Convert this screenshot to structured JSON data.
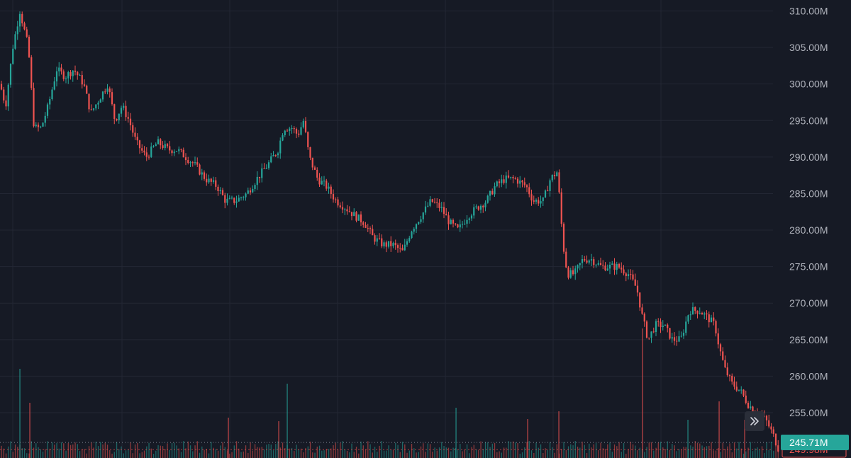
{
  "colors": {
    "background": "#161a25",
    "grid": "#232734",
    "up": "#26a69a",
    "down": "#ef5350",
    "axis_text": "#b2b5be"
  },
  "chart_data": {
    "type": "candlestick",
    "title": "",
    "xlabel": "",
    "ylabel": "",
    "ylim": [
      248.8,
      311.5
    ],
    "y_axis_position": "right",
    "y_ticks": [
      "310.00M",
      "305.00M",
      "300.00M",
      "295.00M",
      "290.00M",
      "285.00M",
      "280.00M",
      "275.00M",
      "270.00M",
      "265.00M",
      "260.00M",
      "255.00M"
    ],
    "y_tick_values": [
      310,
      305,
      300,
      295,
      290,
      285,
      280,
      275,
      270,
      265,
      260,
      255
    ],
    "grid": true,
    "x_tick_labels": [],
    "price_path": [
      [
        0,
        300
      ],
      [
        8,
        297
      ],
      [
        18,
        305
      ],
      [
        28,
        310
      ],
      [
        40,
        305
      ],
      [
        48,
        294
      ],
      [
        58,
        294
      ],
      [
        68,
        297
      ],
      [
        80,
        302
      ],
      [
        92,
        301
      ],
      [
        104,
        302
      ],
      [
        118,
        300
      ],
      [
        128,
        296
      ],
      [
        140,
        298
      ],
      [
        152,
        300
      ],
      [
        162,
        295
      ],
      [
        172,
        297
      ],
      [
        182,
        295
      ],
      [
        192,
        292
      ],
      [
        206,
        290
      ],
      [
        222,
        292
      ],
      [
        238,
        291
      ],
      [
        250,
        291
      ],
      [
        262,
        290
      ],
      [
        274,
        289
      ],
      [
        290,
        287
      ],
      [
        306,
        286
      ],
      [
        318,
        284
      ],
      [
        332,
        284
      ],
      [
        348,
        285
      ],
      [
        362,
        287
      ],
      [
        378,
        289
      ],
      [
        392,
        291
      ],
      [
        400,
        294
      ],
      [
        412,
        294
      ],
      [
        420,
        293
      ],
      [
        428,
        295
      ],
      [
        436,
        290
      ],
      [
        448,
        287
      ],
      [
        460,
        286
      ],
      [
        474,
        284
      ],
      [
        488,
        283
      ],
      [
        500,
        282
      ],
      [
        514,
        281
      ],
      [
        526,
        279
      ],
      [
        540,
        278
      ],
      [
        554,
        278
      ],
      [
        568,
        277
      ],
      [
        580,
        280
      ],
      [
        594,
        282
      ],
      [
        608,
        284
      ],
      [
        622,
        283
      ],
      [
        634,
        281
      ],
      [
        646,
        280
      ],
      [
        660,
        282
      ],
      [
        672,
        283
      ],
      [
        686,
        284
      ],
      [
        698,
        286
      ],
      [
        712,
        287
      ],
      [
        726,
        287
      ],
      [
        742,
        286
      ],
      [
        752,
        284
      ],
      [
        766,
        284
      ],
      [
        776,
        287
      ],
      [
        786,
        288
      ],
      [
        790,
        283
      ],
      [
        794,
        278
      ],
      [
        800,
        274
      ],
      [
        810,
        274
      ],
      [
        822,
        276
      ],
      [
        834,
        276
      ],
      [
        848,
        275
      ],
      [
        860,
        275
      ],
      [
        872,
        275
      ],
      [
        886,
        274
      ],
      [
        898,
        272
      ],
      [
        906,
        268
      ],
      [
        914,
        265
      ],
      [
        924,
        267
      ],
      [
        936,
        267
      ],
      [
        948,
        265
      ],
      [
        960,
        265
      ],
      [
        972,
        269
      ],
      [
        986,
        269
      ],
      [
        998,
        268
      ],
      [
        1008,
        267
      ],
      [
        1014,
        264
      ],
      [
        1022,
        261
      ],
      [
        1032,
        259
      ],
      [
        1044,
        258
      ],
      [
        1056,
        256
      ],
      [
        1068,
        255
      ],
      [
        1080,
        254
      ],
      [
        1090,
        252
      ],
      [
        1098,
        250
      ]
    ],
    "volume_spikes": [
      {
        "x": 28,
        "h": 126,
        "dir": "up"
      },
      {
        "x": 42,
        "h": 78,
        "dir": "down"
      },
      {
        "x": 322,
        "h": 57,
        "dir": "down"
      },
      {
        "x": 393,
        "h": 52,
        "dir": "down"
      },
      {
        "x": 405,
        "h": 105,
        "dir": "up"
      },
      {
        "x": 643,
        "h": 71,
        "dir": "up"
      },
      {
        "x": 744,
        "h": 55,
        "dir": "down"
      },
      {
        "x": 788,
        "h": 66,
        "dir": "down"
      },
      {
        "x": 906,
        "h": 183,
        "dir": "down"
      },
      {
        "x": 970,
        "h": 54,
        "dir": "up"
      },
      {
        "x": 1014,
        "h": 80,
        "dir": "down"
      },
      {
        "x": 1050,
        "h": 54,
        "dir": "down"
      }
    ],
    "last_price": {
      "label": "249.98M",
      "value": 249.98,
      "dir": "down"
    },
    "lower_marker": {
      "label": "245.71M",
      "dir": "up"
    }
  }
}
